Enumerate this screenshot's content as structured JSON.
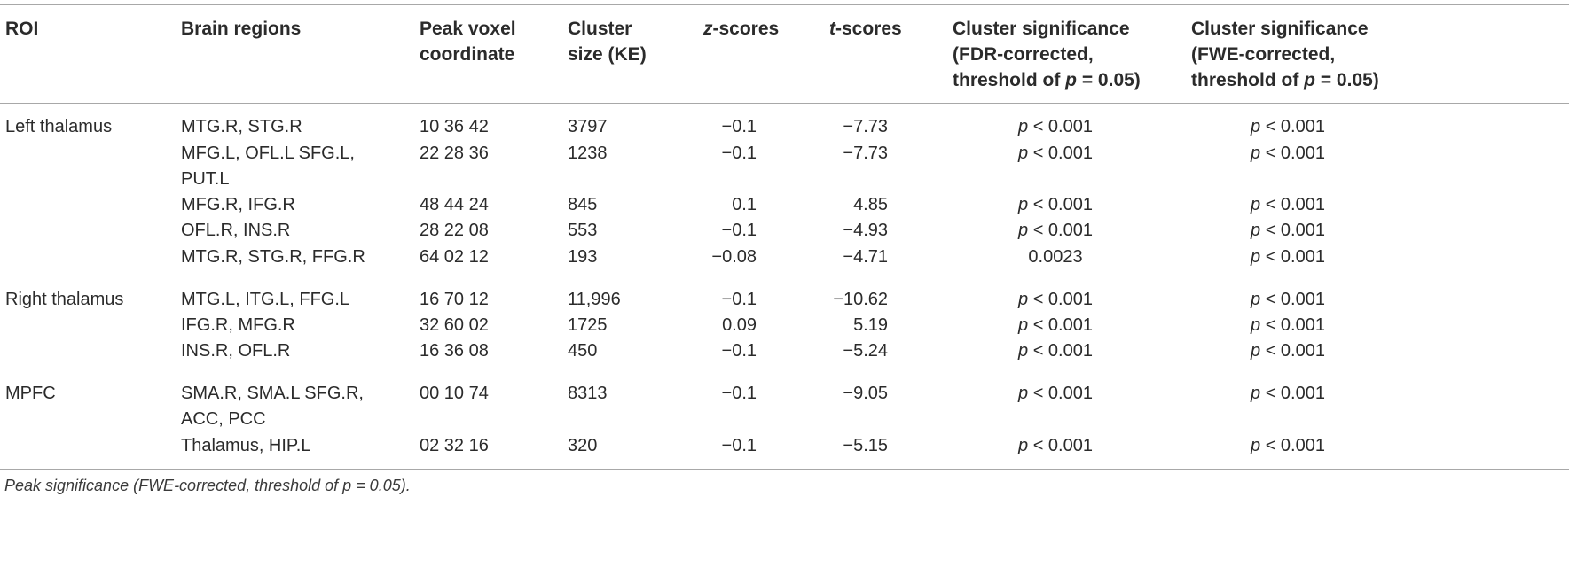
{
  "headers": {
    "roi": "ROI",
    "brain_regions": "Brain regions",
    "peak_voxel": [
      "Peak voxel",
      "coordinate"
    ],
    "cluster_size": [
      "Cluster",
      "size (KE)"
    ],
    "z_var": "z",
    "z_rest": "-scores",
    "t_var": "t",
    "t_rest": "-scores",
    "fdr": [
      "Cluster significance",
      "(FDR-corrected,",
      "threshold of "
    ],
    "fdr_p": "p",
    "fdr_tail": " = 0.05)",
    "fwe": [
      "Cluster significance",
      "(FWE-corrected,",
      "threshold of "
    ],
    "fwe_p": "p",
    "fwe_tail": " = 0.05)"
  },
  "rows": [
    {
      "roi": "Left thalamus",
      "regions": [
        "MTG.R, STG.R"
      ],
      "coord": "10 36 42",
      "size": "3797",
      "z": "−0.1",
      "t": "−7.73",
      "fdr": "p < 0.001",
      "fwe": "p < 0.001"
    },
    {
      "roi": "",
      "regions": [
        "MFG.L, OFL.L SFG.L,",
        "PUT.L"
      ],
      "coord": "22 28 36",
      "size": "1238",
      "z": "−0.1",
      "t": "−7.73",
      "fdr": "p < 0.001",
      "fwe": "p < 0.001"
    },
    {
      "roi": "",
      "regions": [
        "MFG.R, IFG.R"
      ],
      "coord": "48 44 24",
      "size": "845",
      "z": "0.1",
      "t": "4.85",
      "fdr": "p < 0.001",
      "fwe": "p < 0.001"
    },
    {
      "roi": "",
      "regions": [
        "OFL.R, INS.R"
      ],
      "coord": "28 22 08",
      "size": "553",
      "z": "−0.1",
      "t": "−4.93",
      "fdr": "p < 0.001",
      "fwe": "p < 0.001"
    },
    {
      "roi": "",
      "regions": [
        "MTG.R, STG.R, FFG.R"
      ],
      "coord": "64 02 12",
      "size": "193",
      "z": "−0.08",
      "t": "−4.71",
      "fdr": "0.0023",
      "fwe": "p < 0.001"
    },
    {
      "roi": "Right thalamus",
      "regions": [
        "MTG.L, ITG.L, FFG.L"
      ],
      "coord": "16 70 12",
      "size": "11,996",
      "z": "−0.1",
      "t": "−10.62",
      "fdr": "p < 0.001",
      "fwe": "p < 0.001"
    },
    {
      "roi": "",
      "regions": [
        "IFG.R, MFG.R"
      ],
      "coord": "32 60 02",
      "size": "1725",
      "z": "0.09",
      "t": "5.19",
      "fdr": "p < 0.001",
      "fwe": "p < 0.001"
    },
    {
      "roi": "",
      "regions": [
        "INS.R, OFL.R"
      ],
      "coord": "16 36 08",
      "size": "450",
      "z": "−0.1",
      "t": "−5.24",
      "fdr": "p < 0.001",
      "fwe": "p < 0.001"
    },
    {
      "roi": "MPFC",
      "regions": [
        "SMA.R, SMA.L SFG.R,",
        "ACC, PCC"
      ],
      "coord": "00 10 74",
      "size": "8313",
      "z": "−0.1",
      "t": "−9.05",
      "fdr": "p < 0.001",
      "fwe": "p < 0.001"
    },
    {
      "roi": "",
      "regions": [
        "Thalamus, HIP.L"
      ],
      "coord": "02 32 16",
      "size": "320",
      "z": "−0.1",
      "t": "−5.15",
      "fdr": "p < 0.001",
      "fwe": "p < 0.001"
    }
  ],
  "footnote": "Peak significance (FWE-corrected, threshold of p = 0.05)."
}
